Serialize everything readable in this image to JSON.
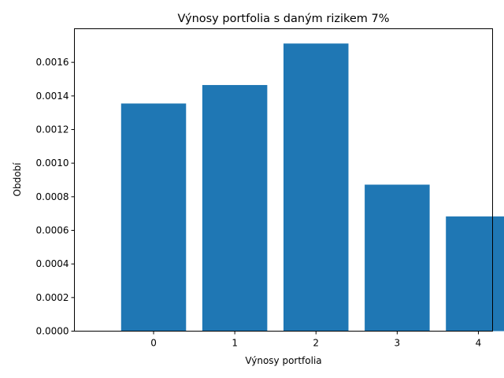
{
  "chart_data": {
    "type": "bar",
    "title": "Výnosy portfolia s daným rizikem 7%",
    "xlabel": "Výnosy portfolia",
    "ylabel": "Období",
    "categories": [
      "0",
      "1",
      "2",
      "3",
      "4"
    ],
    "values": [
      0.001355,
      0.001465,
      0.001712,
      0.000872,
      0.000683
    ],
    "ylim": [
      0,
      0.0018
    ],
    "yticks": [
      "0.0000",
      "0.0002",
      "0.0004",
      "0.0006",
      "0.0008",
      "0.0010",
      "0.0012",
      "0.0014",
      "0.0016"
    ],
    "bar_color": "#1f77b4",
    "grid": false,
    "legend": false
  }
}
